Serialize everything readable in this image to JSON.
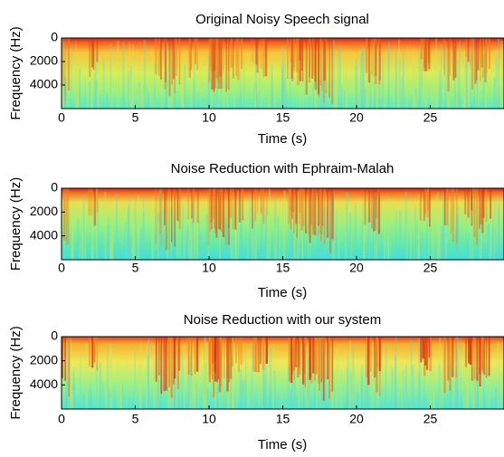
{
  "chart_data": [
    {
      "type": "spectrogram",
      "title": "Original Noisy Speech signal",
      "xlabel": "Time (s)",
      "ylabel": "Frequency (Hz)",
      "xlim": [
        0,
        30
      ],
      "xticks": [
        0,
        5,
        10,
        15,
        20,
        25
      ],
      "ylim": [
        0,
        6000
      ],
      "yticks": [
        0,
        2000,
        4000
      ],
      "yreverse": true
    },
    {
      "type": "spectrogram",
      "title": "Noise Reduction with Ephraim-Malah",
      "xlabel": "Time (s)",
      "ylabel": "Frequency (Hz)",
      "xlim": [
        0,
        30
      ],
      "xticks": [
        0,
        5,
        10,
        15,
        20,
        25
      ],
      "ylim": [
        0,
        6000
      ],
      "yticks": [
        0,
        2000,
        4000
      ],
      "yreverse": true
    },
    {
      "type": "spectrogram",
      "title": "Noise Reduction with our system",
      "xlabel": "Time (s)",
      "ylabel": "Frequency (Hz)",
      "xlim": [
        0,
        30
      ],
      "xticks": [
        0,
        5,
        10,
        15,
        20,
        25
      ],
      "ylim": [
        0,
        6000
      ],
      "yticks": [
        0,
        2000,
        4000
      ],
      "yreverse": true
    }
  ]
}
